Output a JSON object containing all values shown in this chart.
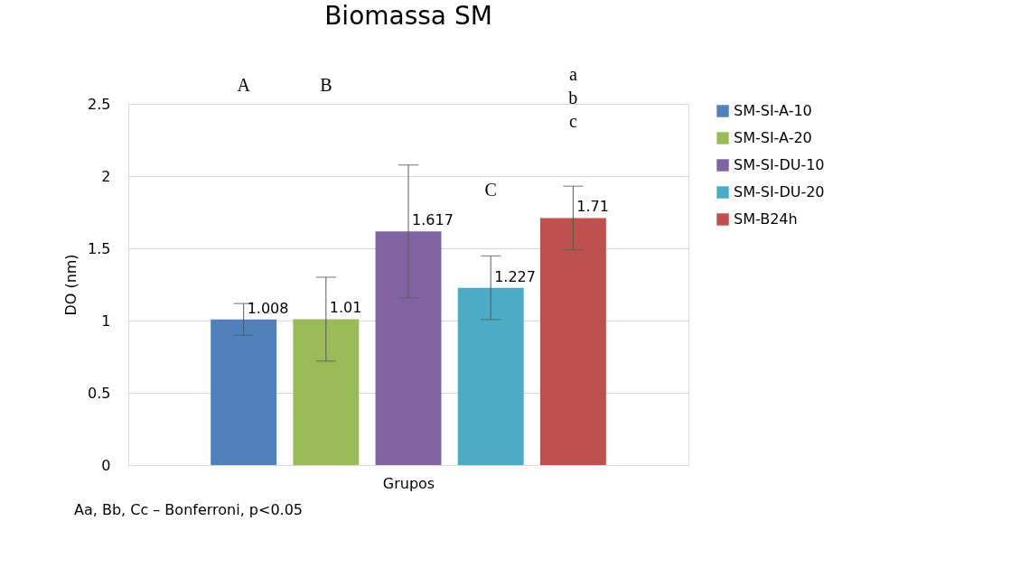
{
  "chart_data": {
    "type": "bar",
    "title": "Biomassa SM",
    "xlabel": "Grupos",
    "ylabel": "DO (nm)",
    "categories": [
      null
    ],
    "series": [
      {
        "name": "SM-SI-A-10",
        "color": "#4f81bd",
        "values": [
          1.008
        ],
        "errors": [
          0.11
        ]
      },
      {
        "name": "SM-SI-A-20",
        "color": "#9bbb59",
        "values": [
          1.01
        ],
        "errors": [
          0.29
        ]
      },
      {
        "name": "SM-SI-DU-10",
        "color": "#8064a2",
        "values": [
          1.617
        ],
        "errors": [
          0.46
        ]
      },
      {
        "name": "SM-SI-DU-20",
        "color": "#4bacc6",
        "values": [
          1.227
        ],
        "errors": [
          0.22
        ]
      },
      {
        "name": "SM-B24h",
        "color": "#c0504d",
        "values": [
          1.71
        ],
        "errors": [
          0.22
        ]
      }
    ],
    "ylim": [
      0,
      2.5
    ],
    "yticks": [
      0,
      0.5,
      1,
      1.5,
      2,
      2.5
    ],
    "grid": "y",
    "legend": "right",
    "data_labels": true,
    "annotations": [
      "A",
      "B",
      "C",
      "a",
      "b",
      "c",
      "Aa, Bb, Cc – Bonferroni, p<0.05"
    ]
  }
}
